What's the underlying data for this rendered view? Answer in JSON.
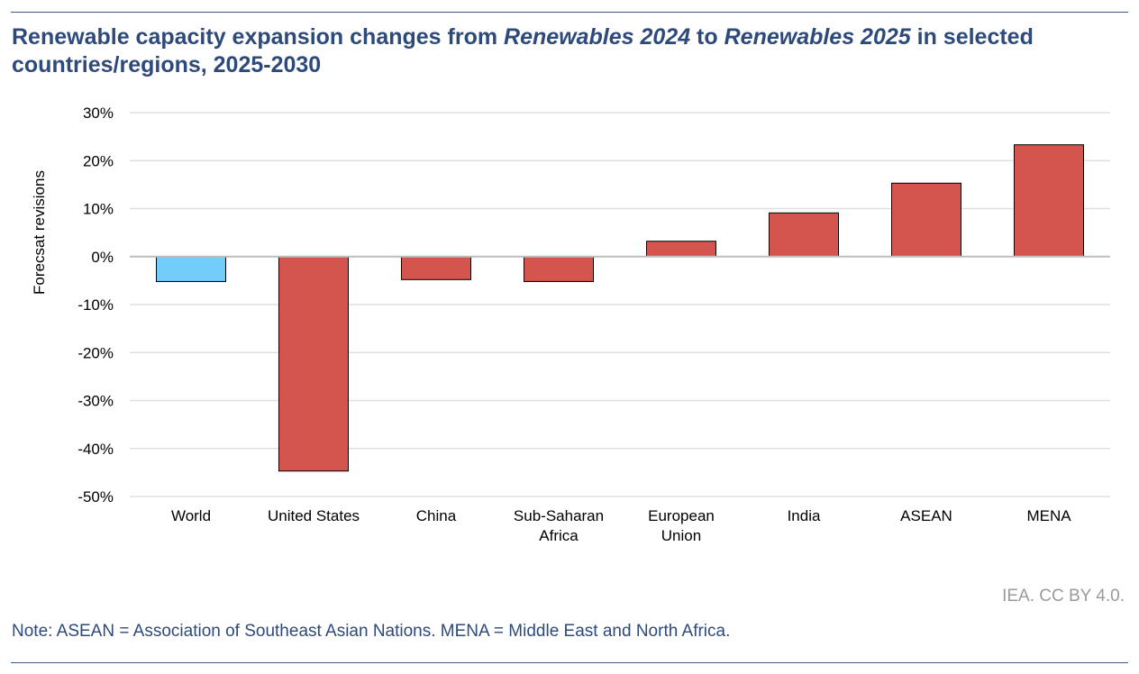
{
  "title_parts": [
    {
      "text": "Renewable capacity expansion changes from ",
      "italic": false
    },
    {
      "text": "Renewables 2024",
      "italic": true
    },
    {
      "text": " to ",
      "italic": false
    },
    {
      "text": "Renewables 2025",
      "italic": true
    },
    {
      "text": " in selected countries/regions, 2025-2030",
      "italic": false
    }
  ],
  "credit": "IEA. CC BY 4.0.",
  "note": "Note: ASEAN = Association of Southeast Asian Nations. MENA = Middle East and North Africa.",
  "colors": {
    "world": "#72cdfa",
    "region": "#d3554d",
    "title": "#2d4a7a",
    "grid": "#e0e0e0"
  },
  "chart_data": {
    "type": "bar",
    "title": "Renewable capacity expansion changes from Renewables 2024 to Renewables 2025 in selected countries/regions, 2025-2030",
    "xlabel": "",
    "ylabel": "Forecsat revisions",
    "ylim": [
      -50,
      30
    ],
    "yticks": [
      30,
      20,
      10,
      0,
      -10,
      -20,
      -30,
      -40,
      -50
    ],
    "ytick_labels": [
      "30%",
      "20%",
      "10%",
      "0%",
      "-10%",
      "-20%",
      "-30%",
      "-40%",
      "-50%"
    ],
    "grid": true,
    "categories": [
      [
        "World"
      ],
      [
        "United States"
      ],
      [
        "China"
      ],
      [
        "Sub-Saharan",
        "Africa"
      ],
      [
        "European",
        "Union"
      ],
      [
        "India"
      ],
      [
        "ASEAN"
      ],
      [
        "MENA"
      ]
    ],
    "values": [
      -5.2,
      -44.7,
      -4.8,
      -5.2,
      3.2,
      9.1,
      15.3,
      23.3
    ],
    "bar_color_keys": [
      "world",
      "region",
      "region",
      "region",
      "region",
      "region",
      "region",
      "region"
    ]
  }
}
